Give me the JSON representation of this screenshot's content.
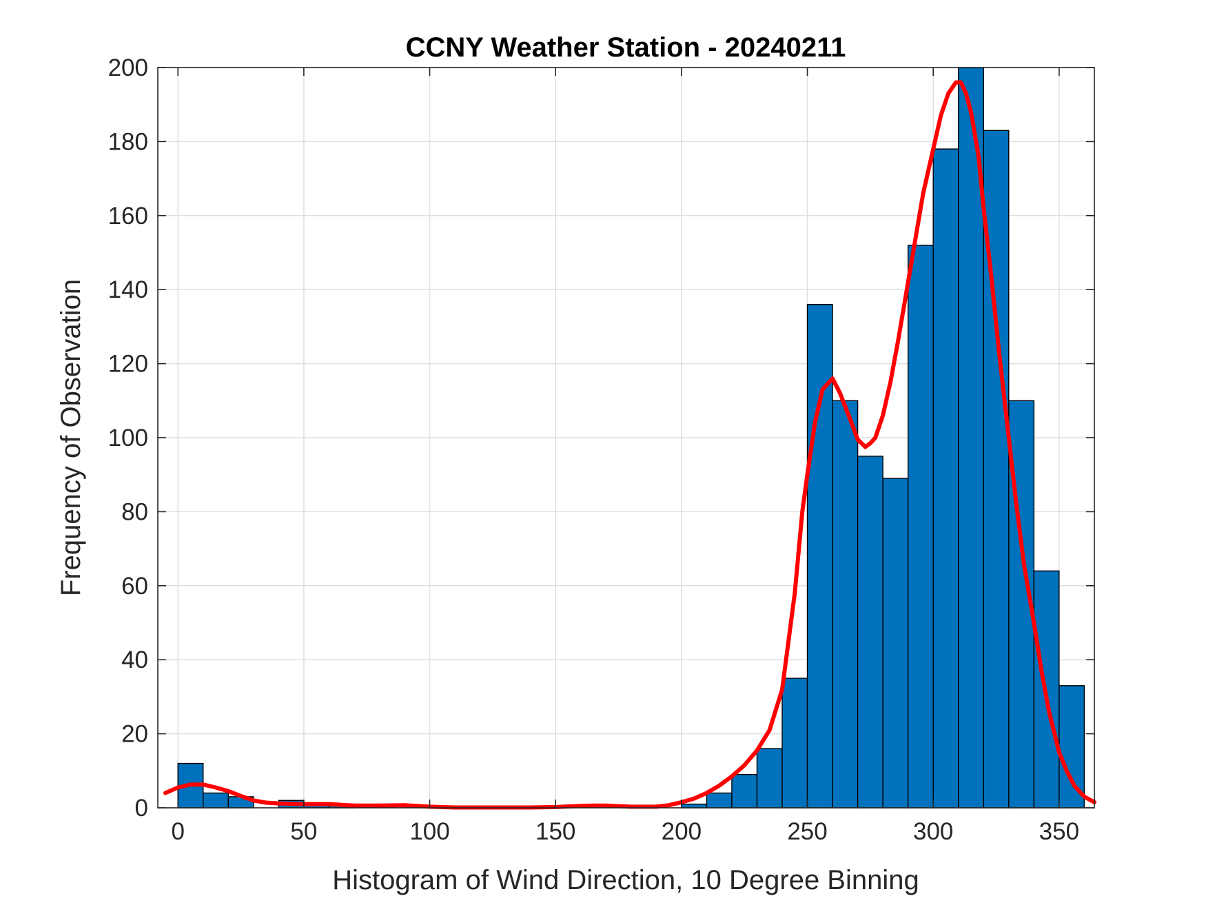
{
  "chart_data": {
    "type": "bar",
    "title": "CCNY Weather Station - 20240211",
    "xlabel": "Histogram of Wind Direction, 10 Degree Binning",
    "ylabel": "Frequency of Observation",
    "xlim": [
      -8,
      364
    ],
    "ylim": [
      0,
      200
    ],
    "grid": true,
    "xticks": [
      0,
      50,
      100,
      150,
      200,
      250,
      300,
      350
    ],
    "yticks": [
      0,
      20,
      40,
      60,
      80,
      100,
      120,
      140,
      160,
      180,
      200
    ],
    "bin_width": 10,
    "bins": [
      {
        "start": 0,
        "value": 12
      },
      {
        "start": 10,
        "value": 4
      },
      {
        "start": 20,
        "value": 3
      },
      {
        "start": 30,
        "value": 0
      },
      {
        "start": 40,
        "value": 2
      },
      {
        "start": 50,
        "value": 1
      },
      {
        "start": 60,
        "value": 1
      },
      {
        "start": 70,
        "value": 0
      },
      {
        "start": 80,
        "value": 0
      },
      {
        "start": 90,
        "value": 0
      },
      {
        "start": 100,
        "value": 0
      },
      {
        "start": 110,
        "value": 0
      },
      {
        "start": 120,
        "value": 0
      },
      {
        "start": 130,
        "value": 0
      },
      {
        "start": 140,
        "value": 0
      },
      {
        "start": 150,
        "value": 0
      },
      {
        "start": 160,
        "value": 0
      },
      {
        "start": 170,
        "value": 0
      },
      {
        "start": 180,
        "value": 0
      },
      {
        "start": 190,
        "value": 0
      },
      {
        "start": 200,
        "value": 1
      },
      {
        "start": 210,
        "value": 4
      },
      {
        "start": 220,
        "value": 9
      },
      {
        "start": 230,
        "value": 16
      },
      {
        "start": 240,
        "value": 35
      },
      {
        "start": 250,
        "value": 136
      },
      {
        "start": 260,
        "value": 110
      },
      {
        "start": 270,
        "value": 95
      },
      {
        "start": 280,
        "value": 89
      },
      {
        "start": 290,
        "value": 152
      },
      {
        "start": 300,
        "value": 178
      },
      {
        "start": 310,
        "value": 200
      },
      {
        "start": 320,
        "value": 183
      },
      {
        "start": 330,
        "value": 110
      },
      {
        "start": 340,
        "value": 64
      },
      {
        "start": 350,
        "value": 33
      }
    ],
    "fit_curve": {
      "color": "#ff0000",
      "x": [
        -5,
        0,
        5,
        10,
        15,
        20,
        25,
        30,
        35,
        40,
        50,
        60,
        70,
        80,
        90,
        100,
        110,
        120,
        130,
        140,
        150,
        160,
        165,
        170,
        180,
        190,
        195,
        200,
        205,
        210,
        215,
        220,
        225,
        230,
        235,
        240,
        245,
        248,
        250,
        253,
        256,
        260,
        263,
        267,
        270,
        273,
        275,
        277,
        280,
        283,
        286,
        290,
        293,
        296,
        300,
        303,
        306,
        309,
        311,
        313,
        315,
        318,
        320,
        323,
        326,
        330,
        333,
        336,
        340,
        343,
        346,
        350,
        353,
        356,
        360,
        364
      ],
      "y": [
        4,
        5.5,
        6.3,
        6.3,
        5.5,
        4.5,
        3.2,
        2,
        1.4,
        1.2,
        1,
        1,
        0.6,
        0.6,
        0.7,
        0.3,
        0.1,
        0.1,
        0.1,
        0.1,
        0.2,
        0.5,
        0.6,
        0.6,
        0.3,
        0.3,
        0.7,
        1.5,
        2.5,
        4,
        6,
        8.5,
        11.5,
        15.5,
        21,
        32,
        58,
        80,
        90,
        104,
        113,
        116,
        112,
        105,
        99.5,
        97.5,
        98.5,
        100,
        106,
        115,
        126,
        142,
        154,
        166,
        178,
        187,
        193,
        196,
        196,
        193,
        188,
        176,
        162,
        144,
        124,
        100,
        82,
        66,
        50,
        37,
        26,
        15,
        10,
        6,
        3,
        1.5
      ]
    }
  }
}
